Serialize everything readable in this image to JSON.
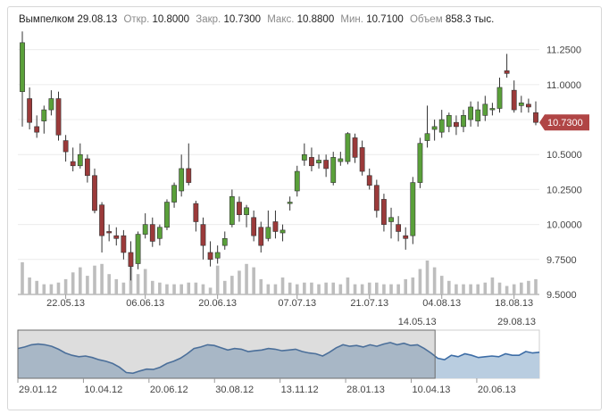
{
  "header": {
    "symbol": "Вымпелком",
    "date": "29.08.13",
    "open_label": "Откр.",
    "open": "10.8000",
    "close_label": "Закр.",
    "close": "10.7300",
    "high_label": "Макс.",
    "high": "10.8800",
    "low_label": "Мин.",
    "low": "10.7100",
    "volume_label": "Объем",
    "volume": "858.3 тыс."
  },
  "colors": {
    "up": "#5aa03a",
    "down": "#9b3a3a",
    "volume": "#bdbdbd",
    "navigator_fill": "#b9cde0",
    "navigator_line": "#3d6da6",
    "last_price": "#b04545"
  },
  "last_price_label": "10.7300",
  "chart_data": [
    {
      "type": "candlestick",
      "title": "",
      "y_axis": {
        "ticks": [
          "11.2500",
          "11.0000",
          "10.7500",
          "10.5000",
          "10.2500",
          "10.0000",
          "9.7500",
          "9.5000"
        ],
        "range": [
          9.5,
          11.35
        ]
      },
      "x_axis": {
        "ticks": [
          {
            "label": "22.05.13",
            "index": 6
          },
          {
            "label": "06.06.13",
            "index": 17
          },
          {
            "label": "20.06.13",
            "index": 27
          },
          {
            "label": "07.07.13",
            "index": 38
          },
          {
            "label": "21.07.13",
            "index": 48
          },
          {
            "label": "04.08.13",
            "index": 58
          },
          {
            "label": "18.08.13",
            "index": 68
          }
        ]
      },
      "candles": [
        {
          "o": 10.95,
          "h": 11.38,
          "c": 11.3,
          "l": 10.7
        },
        {
          "o": 10.9,
          "h": 10.98,
          "c": 10.73,
          "l": 10.68
        },
        {
          "o": 10.7,
          "h": 10.78,
          "c": 10.66,
          "l": 10.62
        },
        {
          "o": 10.74,
          "h": 10.85,
          "c": 10.82,
          "l": 10.65
        },
        {
          "o": 10.82,
          "h": 10.96,
          "c": 10.9,
          "l": 10.78
        },
        {
          "o": 10.9,
          "h": 10.95,
          "c": 10.64,
          "l": 10.6
        },
        {
          "o": 10.6,
          "h": 10.64,
          "c": 10.52,
          "l": 10.45
        },
        {
          "o": 10.45,
          "h": 10.55,
          "c": 10.42,
          "l": 10.38
        },
        {
          "o": 10.42,
          "h": 10.58,
          "c": 10.5,
          "l": 10.4
        },
        {
          "o": 10.47,
          "h": 10.5,
          "c": 10.35,
          "l": 10.3
        },
        {
          "o": 10.35,
          "h": 10.4,
          "c": 10.1,
          "l": 10.08
        },
        {
          "o": 10.14,
          "h": 10.16,
          "c": 9.92,
          "l": 9.8
        },
        {
          "o": 9.95,
          "h": 10.0,
          "c": 9.94,
          "l": 9.88
        },
        {
          "o": 9.92,
          "h": 9.98,
          "c": 9.9,
          "l": 9.85
        },
        {
          "o": 9.92,
          "h": 9.96,
          "c": 9.8,
          "l": 9.75
        },
        {
          "o": 9.8,
          "h": 9.88,
          "c": 9.7,
          "l": 9.6
        },
        {
          "o": 9.72,
          "h": 9.95,
          "c": 9.93,
          "l": 9.68
        },
        {
          "o": 9.93,
          "h": 10.08,
          "c": 10.0,
          "l": 9.9
        },
        {
          "o": 10.0,
          "h": 10.05,
          "c": 9.88,
          "l": 9.84
        },
        {
          "o": 9.9,
          "h": 10.0,
          "c": 9.98,
          "l": 9.85
        },
        {
          "o": 9.98,
          "h": 10.18,
          "c": 10.16,
          "l": 9.96
        },
        {
          "o": 10.16,
          "h": 10.3,
          "c": 10.28,
          "l": 10.12
        },
        {
          "o": 10.24,
          "h": 10.5,
          "c": 10.4,
          "l": 10.2
        },
        {
          "o": 10.4,
          "h": 10.58,
          "c": 10.3,
          "l": 10.28
        },
        {
          "o": 10.15,
          "h": 10.17,
          "c": 10.02,
          "l": 9.95
        },
        {
          "o": 10.0,
          "h": 10.05,
          "c": 9.85,
          "l": 9.75
        },
        {
          "o": 9.8,
          "h": 9.88,
          "c": 9.75,
          "l": 9.7
        },
        {
          "o": 9.76,
          "h": 9.85,
          "c": 9.8,
          "l": 9.72
        },
        {
          "o": 9.85,
          "h": 9.95,
          "c": 9.9,
          "l": 9.82
        },
        {
          "o": 10.0,
          "h": 10.25,
          "c": 10.2,
          "l": 9.98
        },
        {
          "o": 10.16,
          "h": 10.2,
          "c": 10.07,
          "l": 10.02
        },
        {
          "o": 10.07,
          "h": 10.14,
          "c": 10.12,
          "l": 9.98
        },
        {
          "o": 10.05,
          "h": 10.1,
          "c": 9.92,
          "l": 9.88
        },
        {
          "o": 9.98,
          "h": 10.02,
          "c": 9.85,
          "l": 9.8
        },
        {
          "o": 9.9,
          "h": 10.1,
          "c": 9.98,
          "l": 9.88
        },
        {
          "o": 10.02,
          "h": 10.1,
          "c": 9.95,
          "l": 9.9
        },
        {
          "o": 9.94,
          "h": 10.0,
          "c": 9.96,
          "l": 9.88
        },
        {
          "o": 10.15,
          "h": 10.2,
          "c": 10.16,
          "l": 10.1
        },
        {
          "o": 10.24,
          "h": 10.42,
          "c": 10.38,
          "l": 10.2
        },
        {
          "o": 10.46,
          "h": 10.58,
          "c": 10.5,
          "l": 10.42
        },
        {
          "o": 10.48,
          "h": 10.55,
          "c": 10.42,
          "l": 10.38
        },
        {
          "o": 10.44,
          "h": 10.5,
          "c": 10.46,
          "l": 10.4
        },
        {
          "o": 10.46,
          "h": 10.5,
          "c": 10.4,
          "l": 10.34
        },
        {
          "o": 10.3,
          "h": 10.52,
          "c": 10.48,
          "l": 10.28
        },
        {
          "o": 10.45,
          "h": 10.52,
          "c": 10.47,
          "l": 10.42
        },
        {
          "o": 10.45,
          "h": 10.66,
          "c": 10.65,
          "l": 10.43
        },
        {
          "o": 10.62,
          "h": 10.65,
          "c": 10.48,
          "l": 10.44
        },
        {
          "o": 10.55,
          "h": 10.6,
          "c": 10.38,
          "l": 10.35
        },
        {
          "o": 10.35,
          "h": 10.4,
          "c": 10.28,
          "l": 10.25
        },
        {
          "o": 10.28,
          "h": 10.32,
          "c": 10.1,
          "l": 10.05
        },
        {
          "o": 10.18,
          "h": 10.22,
          "c": 10.0,
          "l": 9.95
        },
        {
          "o": 10.02,
          "h": 10.12,
          "c": 10.05,
          "l": 9.9
        },
        {
          "o": 10.0,
          "h": 10.06,
          "c": 9.95,
          "l": 9.88
        },
        {
          "o": 9.92,
          "h": 9.98,
          "c": 9.9,
          "l": 9.82
        },
        {
          "o": 9.92,
          "h": 10.34,
          "c": 10.3,
          "l": 9.86
        },
        {
          "o": 10.3,
          "h": 10.62,
          "c": 10.58,
          "l": 10.26
        },
        {
          "o": 10.6,
          "h": 10.85,
          "c": 10.65,
          "l": 10.55
        },
        {
          "o": 10.68,
          "h": 10.75,
          "c": 10.7,
          "l": 10.6
        },
        {
          "o": 10.66,
          "h": 10.82,
          "c": 10.75,
          "l": 10.62
        },
        {
          "o": 10.7,
          "h": 10.8,
          "c": 10.78,
          "l": 10.66
        },
        {
          "o": 10.73,
          "h": 10.78,
          "c": 10.7,
          "l": 10.64
        },
        {
          "o": 10.7,
          "h": 10.82,
          "c": 10.78,
          "l": 10.66
        },
        {
          "o": 10.75,
          "h": 10.88,
          "c": 10.84,
          "l": 10.7
        },
        {
          "o": 10.74,
          "h": 10.88,
          "c": 10.82,
          "l": 10.7
        },
        {
          "o": 10.78,
          "h": 10.92,
          "c": 10.86,
          "l": 10.74
        },
        {
          "o": 10.82,
          "h": 10.87,
          "c": 10.83,
          "l": 10.78
        },
        {
          "o": 10.83,
          "h": 11.05,
          "c": 10.98,
          "l": 10.8
        },
        {
          "o": 11.1,
          "h": 11.22,
          "c": 11.08,
          "l": 11.05
        },
        {
          "o": 10.96,
          "h": 11.03,
          "c": 10.82,
          "l": 10.8
        },
        {
          "o": 10.85,
          "h": 10.92,
          "c": 10.87,
          "l": 10.8
        },
        {
          "o": 10.86,
          "h": 10.9,
          "c": 10.84,
          "l": 10.8
        },
        {
          "o": 10.8,
          "h": 10.88,
          "c": 10.73,
          "l": 10.71
        }
      ],
      "volume": [
        0.95,
        0.5,
        0.4,
        0.3,
        0.3,
        0.35,
        0.45,
        0.65,
        0.8,
        0.55,
        0.85,
        0.9,
        0.6,
        0.45,
        0.35,
        0.85,
        0.6,
        0.75,
        0.4,
        0.35,
        0.3,
        0.3,
        0.3,
        0.35,
        0.35,
        0.3,
        0.2,
        0.85,
        0.4,
        0.55,
        0.7,
        0.9,
        0.8,
        0.45,
        0.3,
        0.3,
        0.5,
        0.35,
        0.3,
        0.35,
        0.35,
        0.3,
        0.35,
        0.35,
        0.3,
        0.5,
        0.3,
        0.3,
        0.35,
        0.35,
        0.3,
        0.3,
        0.3,
        0.45,
        0.5,
        0.75,
        1.0,
        0.8,
        0.55,
        0.4,
        0.3,
        0.3,
        0.3,
        0.3,
        0.35,
        0.5,
        0.35,
        0.25,
        0.3,
        0.35,
        0.4,
        0.45
      ]
    },
    {
      "type": "area",
      "title": "",
      "x_axis": {
        "ticks": [
          "29.01.12",
          "10.04.12",
          "20.06.12",
          "30.08.12",
          "13.11.12",
          "28.01.13",
          "10.04.13",
          "20.06.13"
        ]
      },
      "selection_labels": {
        "start": "14.05.13",
        "end": "29.08.13"
      },
      "values": [
        0.7,
        0.74,
        0.8,
        0.82,
        0.8,
        0.76,
        0.68,
        0.58,
        0.52,
        0.48,
        0.5,
        0.46,
        0.4,
        0.36,
        0.3,
        0.2,
        0.06,
        0.04,
        0.1,
        0.15,
        0.14,
        0.2,
        0.3,
        0.36,
        0.44,
        0.56,
        0.7,
        0.74,
        0.8,
        0.78,
        0.72,
        0.66,
        0.7,
        0.68,
        0.62,
        0.64,
        0.66,
        0.7,
        0.68,
        0.64,
        0.66,
        0.68,
        0.62,
        0.58,
        0.56,
        0.5,
        0.6,
        0.72,
        0.8,
        0.76,
        0.78,
        0.74,
        0.8,
        0.76,
        0.82,
        0.86,
        0.8,
        0.84,
        0.78,
        0.8,
        0.7,
        0.58,
        0.44,
        0.4,
        0.52,
        0.48,
        0.56,
        0.52,
        0.46,
        0.48,
        0.5,
        0.48,
        0.56,
        0.52,
        0.52,
        0.62,
        0.58,
        0.6
      ],
      "selection": {
        "start_fraction": 0.0,
        "end_fraction": 0.8
      }
    }
  ]
}
